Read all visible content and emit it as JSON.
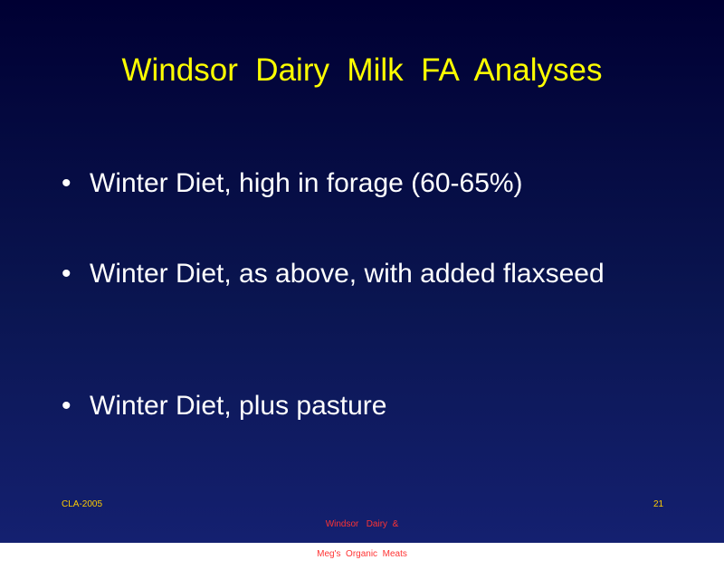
{
  "title": "Windsor  Dairy  Milk  FA  Analyses",
  "bullets": [
    "Winter Diet, high in forage (60-65%)",
    "Winter Diet, as above, with added flaxseed",
    "Winter Diet, plus pasture"
  ],
  "footer": {
    "left": "CLA-2005",
    "center": [
      "Windsor   Dairy  &",
      "Meg's  Organic  Meats"
    ],
    "right": "21"
  }
}
